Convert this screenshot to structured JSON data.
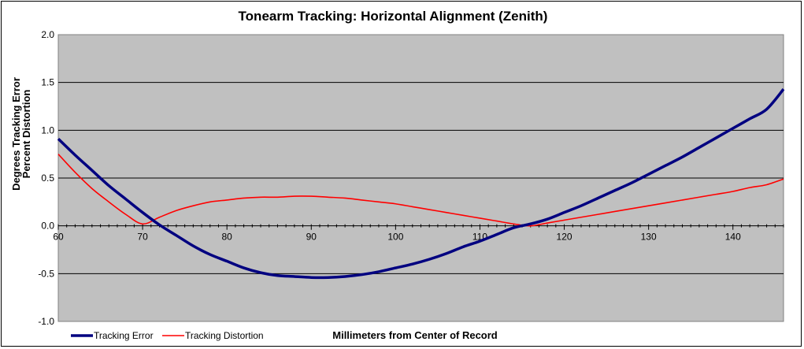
{
  "chart_data": {
    "type": "line",
    "title": "Tonearm Tracking:  Horizontal Alignment (Zenith)",
    "xlabel": "Millimeters from Center of Record",
    "ylabel": [
      "Degrees Tracking Error",
      "Percent Distortion"
    ],
    "xlim": [
      60,
      146
    ],
    "ylim": [
      -1.0,
      2.0
    ],
    "x_ticks": [
      "60",
      "70",
      "80",
      "90",
      "100",
      "110",
      "120",
      "130",
      "140"
    ],
    "y_ticks": [
      "-1.0",
      "-0.5",
      "0.0",
      "0.5",
      "1.0",
      "1.5",
      "2.0"
    ],
    "grid": true,
    "plot_background": "#c0c0c0",
    "legend_position": "bottom-left",
    "series": [
      {
        "name": "Tracking Error",
        "color": "#000080",
        "x": [
          60,
          62,
          64,
          66,
          68,
          70,
          72,
          74,
          76,
          78,
          80,
          82,
          84,
          86,
          88,
          90,
          92,
          94,
          96,
          98,
          100,
          102,
          104,
          106,
          108,
          110,
          112,
          114,
          116,
          118,
          120,
          122,
          124,
          126,
          128,
          130,
          132,
          134,
          136,
          138,
          140,
          142,
          144,
          146
        ],
        "values": [
          0.91,
          0.74,
          0.58,
          0.42,
          0.28,
          0.14,
          0.01,
          -0.1,
          -0.21,
          -0.3,
          -0.37,
          -0.44,
          -0.49,
          -0.52,
          -0.53,
          -0.54,
          -0.54,
          -0.53,
          -0.51,
          -0.48,
          -0.44,
          -0.4,
          -0.35,
          -0.29,
          -0.22,
          -0.16,
          -0.09,
          -0.02,
          0.02,
          0.07,
          0.14,
          0.21,
          0.29,
          0.37,
          0.45,
          0.54,
          0.63,
          0.72,
          0.82,
          0.92,
          1.02,
          1.12,
          1.22,
          1.43
        ]
      },
      {
        "name": "Tracking Distortion",
        "color": "#ff0000",
        "x": [
          60,
          62,
          64,
          66,
          68,
          70,
          72,
          74,
          76,
          78,
          80,
          82,
          84,
          86,
          88,
          90,
          92,
          94,
          96,
          98,
          100,
          102,
          104,
          106,
          108,
          110,
          112,
          114,
          116,
          118,
          120,
          122,
          124,
          126,
          128,
          130,
          132,
          134,
          136,
          138,
          140,
          142,
          144,
          146
        ],
        "values": [
          0.75,
          0.56,
          0.39,
          0.25,
          0.12,
          0.02,
          0.09,
          0.16,
          0.21,
          0.25,
          0.27,
          0.29,
          0.3,
          0.3,
          0.31,
          0.31,
          0.3,
          0.29,
          0.27,
          0.25,
          0.23,
          0.2,
          0.17,
          0.14,
          0.11,
          0.08,
          0.05,
          0.02,
          0.0,
          0.03,
          0.06,
          0.09,
          0.12,
          0.15,
          0.18,
          0.21,
          0.24,
          0.27,
          0.3,
          0.33,
          0.36,
          0.4,
          0.43,
          0.49
        ]
      }
    ]
  }
}
